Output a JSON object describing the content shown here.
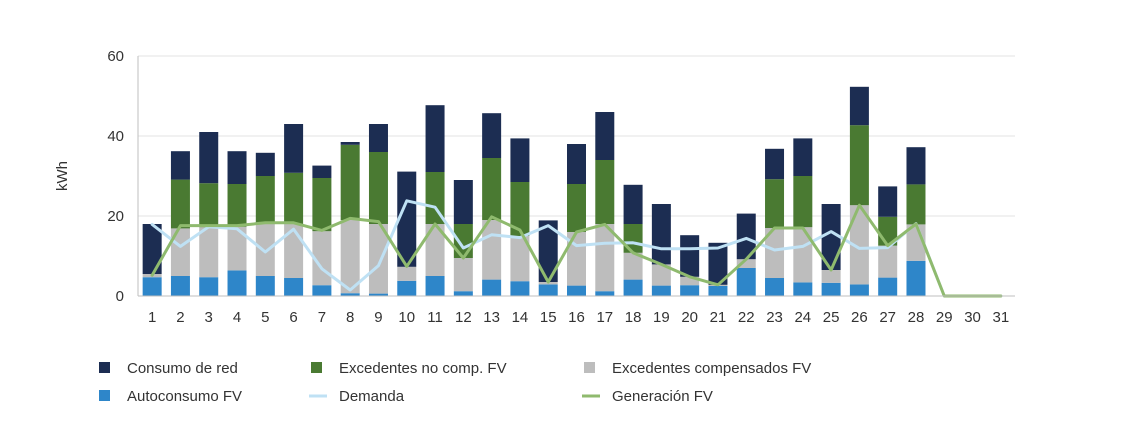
{
  "chart_data": {
    "type": "bar",
    "ylabel": "kWh",
    "xlabel": "",
    "ylim": [
      0,
      60
    ],
    "yticks": [
      0,
      20,
      40,
      60
    ],
    "grid": true,
    "legend_position": "bottom",
    "categories": [
      "1",
      "2",
      "3",
      "4",
      "5",
      "6",
      "7",
      "8",
      "9",
      "10",
      "11",
      "12",
      "13",
      "14",
      "15",
      "16",
      "17",
      "18",
      "19",
      "20",
      "21",
      "22",
      "23",
      "24",
      "25",
      "26",
      "27",
      "28",
      "29",
      "30",
      "31"
    ],
    "series": [
      {
        "name": "Autoconsumo FV",
        "kind": "bar",
        "color": "#2e86c9",
        "values": [
          4.7,
          5.0,
          4.7,
          6.4,
          5.0,
          4.5,
          2.7,
          0.7,
          0.6,
          3.8,
          5.0,
          1.2,
          4.1,
          3.7,
          2.9,
          2.6,
          1.2,
          4.1,
          2.6,
          2.7,
          2.5,
          7.0,
          4.5,
          3.4,
          3.3,
          2.9,
          4.6,
          8.8,
          0,
          0,
          0
        ]
      },
      {
        "name": "Excedentes compensados FV",
        "kind": "bar",
        "color": "#bdbdbd",
        "values": [
          0.8,
          11.9,
          12.5,
          10.9,
          13.0,
          13.5,
          13.5,
          18.3,
          17.4,
          3.5,
          13.0,
          8.3,
          14.9,
          11.3,
          0.6,
          13.4,
          16.8,
          6.7,
          5.3,
          2.1,
          0.3,
          2.2,
          12.5,
          13.8,
          3.2,
          19.8,
          8.0,
          9.1,
          0,
          0,
          0
        ]
      },
      {
        "name": "Excedentes no comp. FV",
        "kind": "bar",
        "color": "#4a7a32",
        "values": [
          0,
          12.2,
          11.0,
          10.7,
          12.0,
          12.8,
          13.3,
          18.8,
          18.0,
          0,
          13.0,
          8.5,
          15.5,
          13.5,
          0,
          12.0,
          16.0,
          7.2,
          0,
          0,
          0,
          0,
          12.2,
          12.8,
          0,
          20.0,
          7.2,
          10.0,
          0,
          0,
          0
        ]
      },
      {
        "name": "Consumo de red",
        "kind": "bar",
        "color": "#1c2d52",
        "values": [
          12.5,
          7.1,
          12.8,
          8.2,
          5.8,
          12.2,
          3.1,
          0.7,
          7.0,
          23.8,
          16.7,
          11.0,
          11.2,
          10.9,
          15.4,
          10.0,
          12.0,
          9.8,
          15.1,
          10.4,
          10.5,
          11.4,
          7.6,
          9.4,
          16.5,
          9.6,
          7.6,
          9.3,
          0,
          0,
          0
        ]
      },
      {
        "name": "Demanda",
        "kind": "line",
        "color": "#bfe1f4",
        "values": [
          17.9,
          12.4,
          17.3,
          16.8,
          11.0,
          16.7,
          6.8,
          1.5,
          7.6,
          23.8,
          22.2,
          12.0,
          15.3,
          14.6,
          17.6,
          12.6,
          13.2,
          13.3,
          11.8,
          11.8,
          12.0,
          14.4,
          11.5,
          12.4,
          16.1,
          11.9,
          12.1,
          18.1,
          0,
          0,
          0
        ]
      },
      {
        "name": "Generación FV",
        "kind": "line",
        "color": "#8fba6e",
        "values": [
          5.2,
          17.6,
          17.6,
          17.6,
          18.3,
          18.3,
          16.4,
          19.4,
          18.6,
          7.4,
          18.0,
          9.5,
          19.8,
          16.5,
          3.5,
          16.0,
          17.9,
          10.8,
          7.9,
          4.8,
          2.8,
          9.2,
          17.0,
          17.0,
          6.5,
          22.7,
          12.6,
          18.0,
          0,
          0,
          0
        ]
      }
    ],
    "legend": [
      {
        "name": "Consumo de red",
        "marker": "square",
        "color": "#1c2d52"
      },
      {
        "name": "Excedentes no comp. FV",
        "marker": "square",
        "color": "#4a7a32"
      },
      {
        "name": "Excedentes compensados FV",
        "marker": "square",
        "color": "#bdbdbd"
      },
      {
        "name": "Autoconsumo FV",
        "marker": "square",
        "color": "#2e86c9"
      },
      {
        "name": "Demanda",
        "marker": "line",
        "color": "#bfe1f4"
      },
      {
        "name": "Generación FV",
        "marker": "line",
        "color": "#8fba6e"
      }
    ]
  }
}
